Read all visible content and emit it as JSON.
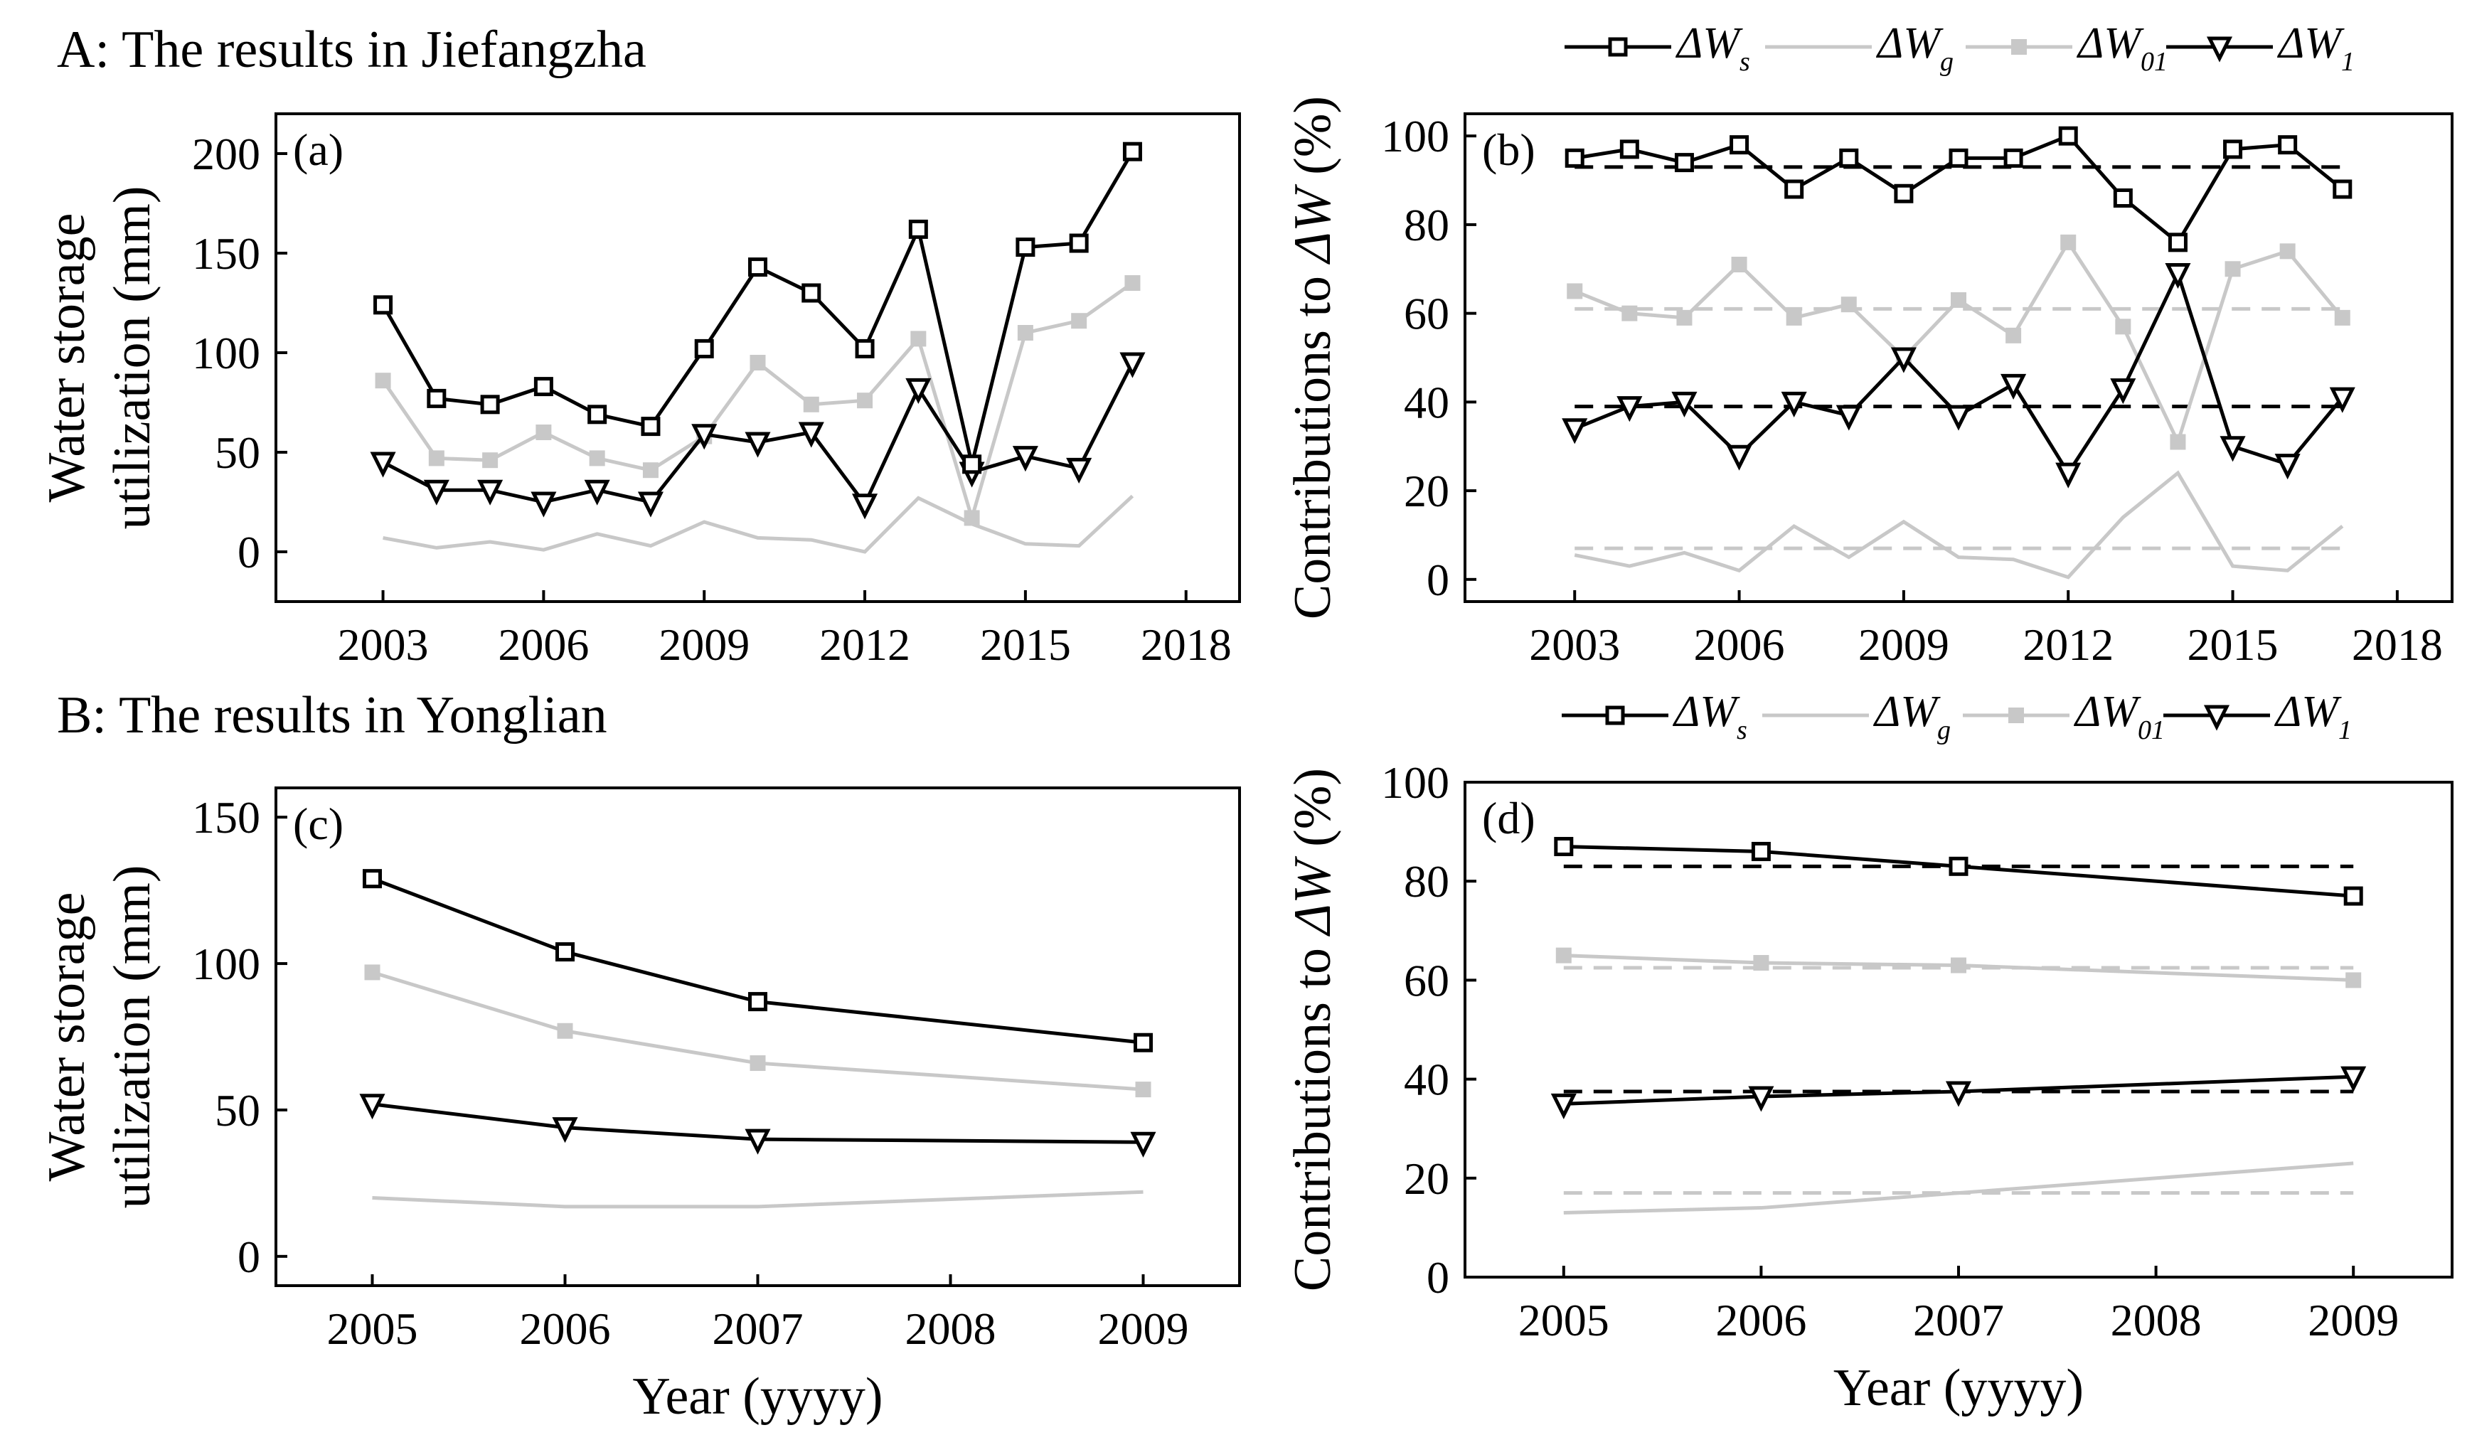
{
  "sections": {
    "A": "A: The results in Jiefangzha",
    "B": "B: The results in Yonglian"
  },
  "legend": {
    "delta": "ΔW",
    "items": [
      {
        "sub": "s",
        "key": "ws"
      },
      {
        "sub": "g",
        "key": "wg"
      },
      {
        "sub": "01",
        "key": "w01"
      },
      {
        "sub": "1",
        "key": "w1"
      }
    ]
  },
  "colors": {
    "black": "#000000",
    "gray": "#c8c8c8"
  },
  "chart_data": [
    {
      "id": "a",
      "type": "line",
      "panel_label": "(a)",
      "ylabel": [
        "Water storage",
        "utilization (mm)"
      ],
      "xlabel": "",
      "xlim": [
        2001,
        2019
      ],
      "xticks": [
        2003,
        2006,
        2009,
        2012,
        2015,
        2018
      ],
      "ylim": [
        -25,
        220
      ],
      "yticks": [
        0,
        50,
        100,
        150,
        200
      ],
      "x": [
        2003,
        2004,
        2005,
        2006,
        2007,
        2008,
        2009,
        2010,
        2011,
        2012,
        2013,
        2014,
        2015,
        2016,
        2017
      ],
      "series": [
        {
          "key": "ws",
          "marker": "square-open",
          "color": "black",
          "values": [
            124,
            77,
            74,
            83,
            69,
            63,
            102,
            143,
            130,
            102,
            162,
            44,
            153,
            155,
            201
          ]
        },
        {
          "key": "wg",
          "marker": "none",
          "color": "gray",
          "values": [
            7,
            2,
            5,
            1,
            9,
            3,
            15,
            7,
            6,
            0,
            27,
            14,
            4,
            3,
            28
          ]
        },
        {
          "key": "w01",
          "marker": "square-filled",
          "color": "gray",
          "values": [
            86,
            47,
            46,
            60,
            47,
            41,
            58,
            95,
            74,
            76,
            107,
            17,
            110,
            116,
            135
          ]
        },
        {
          "key": "w1",
          "marker": "triangle-down",
          "color": "black",
          "values": [
            45,
            31,
            31,
            25,
            31,
            25,
            59,
            55,
            60,
            24,
            82,
            40,
            48,
            42,
            95
          ]
        }
      ],
      "hlines": []
    },
    {
      "id": "b",
      "type": "line",
      "panel_label": "(b)",
      "ylabel_prefix": "Contributions to ",
      "ylabel_delta": "ΔW",
      "ylabel_suffix": " (%)",
      "xlabel": "",
      "xlim": [
        2001,
        2019
      ],
      "xticks": [
        2003,
        2006,
        2009,
        2012,
        2015,
        2018
      ],
      "ylim": [
        -5,
        105
      ],
      "yticks": [
        0,
        20,
        40,
        60,
        80,
        100
      ],
      "x": [
        2003,
        2004,
        2005,
        2006,
        2007,
        2008,
        2009,
        2010,
        2011,
        2012,
        2013,
        2014,
        2015,
        2016,
        2017
      ],
      "series": [
        {
          "key": "ws",
          "marker": "square-open",
          "color": "black",
          "values": [
            95,
            97,
            94,
            98,
            88,
            95,
            87,
            95,
            95,
            100,
            86,
            76,
            97,
            98,
            88
          ]
        },
        {
          "key": "wg",
          "marker": "none",
          "color": "gray",
          "values": [
            5.5,
            3,
            6,
            2,
            12,
            5,
            13,
            5,
            4.5,
            0.5,
            14,
            24,
            3,
            2,
            12
          ]
        },
        {
          "key": "w01",
          "marker": "square-filled",
          "color": "gray",
          "values": [
            65,
            60,
            59,
            71,
            59,
            62,
            50,
            63,
            55,
            76,
            57,
            31,
            70,
            74,
            59
          ]
        },
        {
          "key": "w1",
          "marker": "triangle-down",
          "color": "black",
          "values": [
            34,
            39,
            40,
            28,
            40,
            37,
            50,
            37,
            44,
            24,
            43,
            69,
            30,
            26,
            41
          ]
        }
      ],
      "hlines": [
        {
          "value": 93,
          "color": "black"
        },
        {
          "value": 61,
          "color": "gray"
        },
        {
          "value": 39,
          "color": "black"
        },
        {
          "value": 7,
          "color": "gray"
        }
      ]
    },
    {
      "id": "c",
      "type": "line",
      "panel_label": "(c)",
      "ylabel": [
        "Water storage",
        "utilization (mm)"
      ],
      "xlabel": "Year (yyyy)",
      "xlim": [
        2004.5,
        2009.5
      ],
      "xticks": [
        2005,
        2006,
        2007,
        2008,
        2009
      ],
      "ylim": [
        -10,
        160
      ],
      "yticks": [
        0,
        50,
        100,
        150
      ],
      "x": [
        2005,
        2006,
        2007,
        2009
      ],
      "series": [
        {
          "key": "ws",
          "marker": "square-open",
          "color": "black",
          "values": [
            129,
            104,
            87,
            73
          ]
        },
        {
          "key": "wg",
          "marker": "none",
          "color": "gray",
          "values": [
            20,
            17,
            17,
            22
          ]
        },
        {
          "key": "w01",
          "marker": "square-filled",
          "color": "gray",
          "values": [
            97,
            77,
            66,
            57
          ]
        },
        {
          "key": "w1",
          "marker": "triangle-down",
          "color": "black",
          "values": [
            52,
            44,
            40,
            39
          ]
        }
      ],
      "hlines": []
    },
    {
      "id": "d",
      "type": "line",
      "panel_label": "(d)",
      "ylabel_prefix": "Contributions to ",
      "ylabel_delta": "ΔW",
      "ylabel_suffix": " (%)",
      "xlabel": "Year (yyyy)",
      "xlim": [
        2004.5,
        2009.5
      ],
      "xticks": [
        2005,
        2006,
        2007,
        2008,
        2009
      ],
      "ylim": [
        0,
        100
      ],
      "yticks": [
        0,
        20,
        40,
        60,
        80,
        100
      ],
      "x": [
        2005,
        2006,
        2007,
        2009
      ],
      "series": [
        {
          "key": "ws",
          "marker": "square-open",
          "color": "black",
          "values": [
            87,
            86,
            83,
            77
          ]
        },
        {
          "key": "wg",
          "marker": "none",
          "color": "gray",
          "values": [
            13,
            14,
            17,
            23
          ]
        },
        {
          "key": "w01",
          "marker": "square-filled",
          "color": "gray",
          "values": [
            65,
            63.5,
            63,
            60
          ]
        },
        {
          "key": "w1",
          "marker": "triangle-down",
          "color": "black",
          "values": [
            35,
            36.5,
            37.5,
            40.5
          ]
        }
      ],
      "hlines": [
        {
          "value": 83,
          "color": "black"
        },
        {
          "value": 62.5,
          "color": "gray"
        },
        {
          "value": 37.5,
          "color": "black"
        },
        {
          "value": 17,
          "color": "gray"
        }
      ]
    }
  ]
}
